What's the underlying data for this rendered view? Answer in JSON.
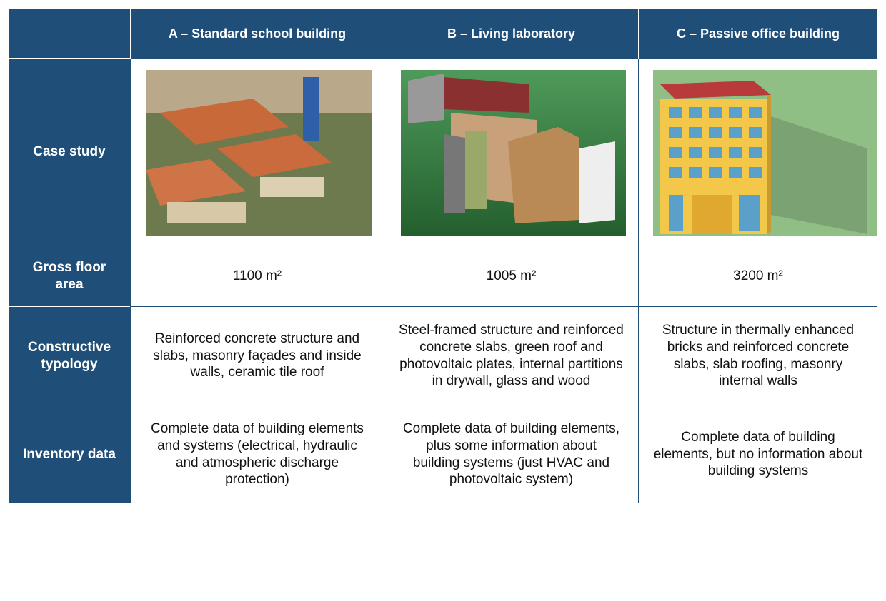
{
  "table": {
    "columns": [
      "A – Standard school building",
      "B – Living laboratory",
      "C – Passive office building"
    ],
    "rows": [
      {
        "label": "Case study"
      },
      {
        "label": "Gross floor area",
        "cells": [
          "1100 m²",
          "1005 m²",
          "3200 m²"
        ]
      },
      {
        "label": "Constructive typology",
        "cells": [
          "Reinforced concrete structure and slabs, masonry façades and inside walls, ceramic tile roof",
          "Steel-framed structure and reinforced concrete slabs, green roof and photovoltaic plates, internal partitions in drywall, glass and wood",
          "Structure in thermally enhanced bricks and reinforced concrete slabs, slab roofing, masonry internal walls"
        ]
      },
      {
        "label": "Inventory data",
        "cells": [
          "Complete data of building elements and systems (electrical, hydraulic and atmospheric discharge protection)",
          "Complete data of building elements, plus some information about building systems (just HVAC and photovoltaic system)",
          "Complete data of building elements, but no information about building systems"
        ]
      }
    ]
  }
}
